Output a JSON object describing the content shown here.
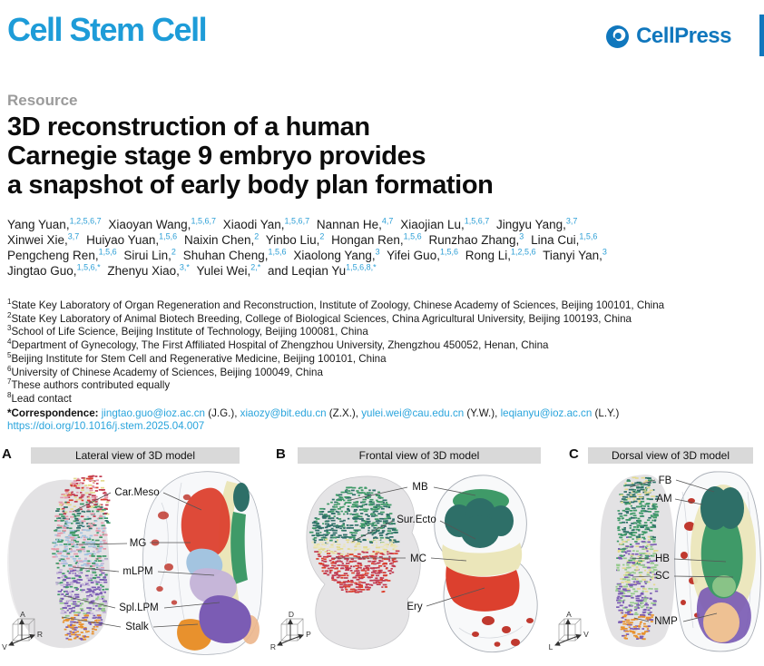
{
  "masthead": {
    "journal": "Cell Stem Cell",
    "publisher": "CellPress"
  },
  "article": {
    "kicker": "Resource",
    "title_lines": [
      "3D reconstruction of a human",
      "Carnegie stage 9 embryo provides",
      "a snapshot of early body plan formation"
    ],
    "author_lines": [
      [
        {
          "n": "Yang Yuan,",
          "s": "1,2,5,6,7"
        },
        {
          "n": "Xiaoyan Wang,",
          "s": "1,5,6,7"
        },
        {
          "n": "Xiaodi Yan,",
          "s": "1,5,6,7"
        },
        {
          "n": "Nannan He,",
          "s": "4,7"
        },
        {
          "n": "Xiaojian Lu,",
          "s": "1,5,6,7"
        },
        {
          "n": "Jingyu Yang,",
          "s": "3,7"
        }
      ],
      [
        {
          "n": "Xinwei Xie,",
          "s": "3,7"
        },
        {
          "n": "Huiyao Yuan,",
          "s": "1,5,6"
        },
        {
          "n": "Naixin Chen,",
          "s": "2"
        },
        {
          "n": "Yinbo Liu,",
          "s": "2"
        },
        {
          "n": "Hongan Ren,",
          "s": "1,5,6"
        },
        {
          "n": "Runzhao Zhang,",
          "s": "3"
        },
        {
          "n": "Lina Cui,",
          "s": "1,5,6"
        }
      ],
      [
        {
          "n": "Pengcheng Ren,",
          "s": "1,5,6"
        },
        {
          "n": "Sirui Lin,",
          "s": "2"
        },
        {
          "n": "Shuhan Cheng,",
          "s": "1,5,6"
        },
        {
          "n": "Xiaolong Yang,",
          "s": "3"
        },
        {
          "n": "Yifei Guo,",
          "s": "1,5,6"
        },
        {
          "n": "Rong Li,",
          "s": "1,2,5,6"
        },
        {
          "n": "Tianyi Yan,",
          "s": "3"
        }
      ],
      [
        {
          "n": "Jingtao Guo,",
          "s": "1,5,6,*"
        },
        {
          "n": "Zhenyu Xiao,",
          "s": "3,*"
        },
        {
          "n": "Yulei Wei,",
          "s": "2,*"
        },
        {
          "n": "and Leqian Yu",
          "s": "1,5,6,8,*"
        }
      ]
    ],
    "affiliations": [
      {
        "n": "1",
        "t": "State Key Laboratory of Organ Regeneration and Reconstruction, Institute of Zoology, Chinese Academy of Sciences, Beijing 100101, China"
      },
      {
        "n": "2",
        "t": "State Key Laboratory of Animal Biotech Breeding, College of Biological Sciences, China Agricultural University, Beijing 100193, China"
      },
      {
        "n": "3",
        "t": "School of Life Science, Beijing Institute of Technology, Beijing 100081, China"
      },
      {
        "n": "4",
        "t": "Department of Gynecology, The First Affiliated Hospital of Zhengzhou University, Zhengzhou 450052, Henan, China"
      },
      {
        "n": "5",
        "t": "Beijing Institute for Stem Cell and Regenerative Medicine, Beijing 100101, China"
      },
      {
        "n": "6",
        "t": "University of Chinese Academy of Sciences, Beijing 100049, China"
      },
      {
        "n": "7",
        "t": "These authors contributed equally"
      },
      {
        "n": "8",
        "t": "Lead contact"
      }
    ],
    "correspondence": {
      "label": "*Correspondence:",
      "entries": [
        {
          "email": "jingtao.guo@ioz.ac.cn",
          "init": "(J.G.),"
        },
        {
          "email": "xiaozy@bit.edu.cn",
          "init": "(Z.X.),"
        },
        {
          "email": "yulei.wei@cau.edu.cn",
          "init": "(Y.W.),"
        },
        {
          "email": "leqianyu@ioz.ac.cn",
          "init": "(L.Y.)"
        }
      ]
    },
    "doi": "https://doi.org/10.1016/j.stem.2025.04.007"
  },
  "figure": {
    "panels": [
      {
        "letter": "A",
        "title": "Lateral view of 3D model",
        "labels": [
          "Car.Meso",
          "MG",
          "mLPM",
          "Spl.LPM",
          "Stalk"
        ],
        "axis": {
          "up": "A",
          "left": "V",
          "right": "R"
        }
      },
      {
        "letter": "B",
        "title": "Frontal view of 3D model",
        "labels": [
          "MB",
          "Sur.Ecto",
          "MC",
          "Ery"
        ],
        "axis": {
          "up": "D",
          "left": "R",
          "right": "P"
        }
      },
      {
        "letter": "C",
        "title": "Dorsal view of 3D model",
        "labels": [
          "FB",
          "AM",
          "HB",
          "SC",
          "NMP"
        ],
        "axis": {
          "up": "A",
          "left": "L",
          "right": "V"
        }
      }
    ]
  },
  "colors": {
    "brand": "#1e9cd8",
    "press": "#1077bd",
    "link": "#29a4dc",
    "sup": "#2d9fd6",
    "panel_bar": "#d9d9d9",
    "label_text": "#111111",
    "leader": "#555555",
    "red": "#dc402e",
    "crimson": "#c23b50",
    "pink": "#e59aab",
    "yellow": "#e3da8f",
    "cream": "#ebe6ba",
    "teal": "#2e6f68",
    "green": "#3f9a68",
    "light_green": "#96ca8d",
    "light_blue": "#a3c4e0",
    "lavender": "#c4b4d8",
    "purple": "#7b5cb4",
    "orange": "#e8912d",
    "tan": "#eec193",
    "peach": "#ecb68c",
    "blood_red": "#c0392f",
    "shell": "#f5f6f8",
    "gray_blob": "#dcdbdd"
  }
}
